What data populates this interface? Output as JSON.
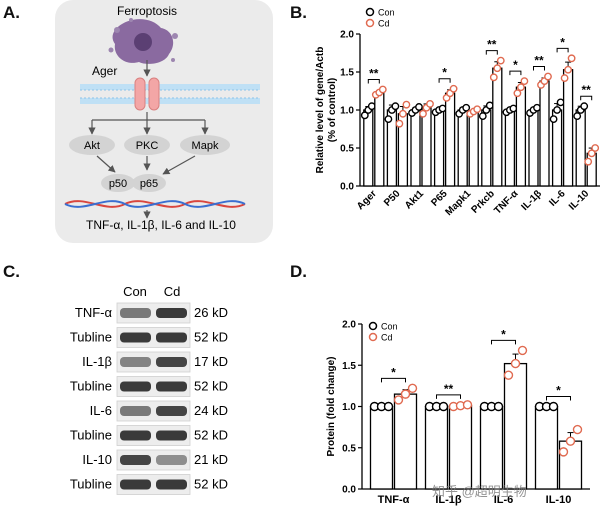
{
  "panels": {
    "A": {
      "label": "A.",
      "title": "Ferroptosis",
      "receptor": "Ager",
      "kinases": [
        "Akt",
        "PKC",
        "Mapk"
      ],
      "nfkb": [
        "p50",
        "p65"
      ],
      "outcome": "TNF-α, IL-1β, IL-6 and IL-10",
      "colors": {
        "bg": "#ebebeb",
        "cell": "#8a6aa0",
        "receptor": "#f3a6a6",
        "membrane": "#bfe0f5"
      }
    },
    "B": {
      "label": "B."
    },
    "C": {
      "label": "C.",
      "lanes": [
        "Con",
        "Cd"
      ],
      "rows": [
        {
          "name": "TNF-α",
          "kd": "26 kD"
        },
        {
          "name": "Tubline",
          "kd": "52 kD"
        },
        {
          "name": "IL-1β",
          "kd": "17 kD"
        },
        {
          "name": "Tubline",
          "kd": "52 kD"
        },
        {
          "name": "IL-6",
          "kd": "24 kD"
        },
        {
          "name": "Tubline",
          "kd": "52 kD"
        },
        {
          "name": "IL-10",
          "kd": "21 kD"
        },
        {
          "name": "Tubline",
          "kd": "52 kD"
        }
      ]
    },
    "D": {
      "label": "D."
    }
  },
  "watermark": "知乎 @超明生物",
  "chart_data": [
    {
      "id": "B",
      "type": "bar",
      "ylabel": "Relative level of gene/Actb\n(% of control)",
      "ylim": [
        0,
        2.0
      ],
      "yticks": [
        "0.0",
        "0.5",
        "1.0",
        "1.5",
        "2.0"
      ],
      "categories": [
        "Ager",
        "P50",
        "Akt1",
        "P65",
        "Mapk1",
        "Prkcb",
        "TNF-α",
        "IL-1β",
        "IL-6",
        "IL-10"
      ],
      "legend": [
        "Con",
        "Cd"
      ],
      "series": [
        {
          "name": "Con",
          "values": [
            1.0,
            1.0,
            1.0,
            1.0,
            1.0,
            1.0,
            1.0,
            1.0,
            1.0,
            1.0
          ],
          "color": "#000000"
        },
        {
          "name": "Cd",
          "values": [
            1.23,
            0.95,
            1.03,
            1.22,
            0.98,
            1.55,
            1.3,
            1.38,
            1.53,
            0.43
          ],
          "color": "#e06a50"
        }
      ],
      "points": {
        "Con": [
          [
            0.93,
            1.0,
            1.05
          ],
          [
            0.88,
            1.0,
            1.05
          ],
          [
            0.96,
            1.0,
            1.04
          ],
          [
            0.97,
            1.0,
            1.02
          ],
          [
            0.95,
            1.0,
            1.03
          ],
          [
            0.92,
            1.0,
            1.06
          ],
          [
            0.97,
            1.0,
            1.02
          ],
          [
            0.96,
            1.0,
            1.03
          ],
          [
            0.88,
            1.0,
            1.1
          ],
          [
            0.92,
            1.0,
            1.05
          ]
        ],
        "Cd": [
          [
            1.2,
            1.23,
            1.27
          ],
          [
            0.82,
            0.95,
            1.07
          ],
          [
            0.95,
            1.03,
            1.08
          ],
          [
            1.16,
            1.22,
            1.28
          ],
          [
            0.95,
            0.98,
            1.01
          ],
          [
            1.43,
            1.55,
            1.65
          ],
          [
            1.22,
            1.3,
            1.38
          ],
          [
            1.33,
            1.38,
            1.44
          ],
          [
            1.42,
            1.53,
            1.68
          ],
          [
            0.32,
            0.43,
            0.5
          ]
        ]
      },
      "significance": [
        "**",
        "",
        "",
        "*",
        "",
        "**",
        "*",
        "**",
        "*",
        "**"
      ]
    },
    {
      "id": "D",
      "type": "bar",
      "ylabel": "Protein (fold change)",
      "ylim": [
        0,
        2.0
      ],
      "yticks": [
        "0.0",
        "0.5",
        "1.0",
        "1.5",
        "2.0"
      ],
      "categories": [
        "TNF-α",
        "IL-1β",
        "IL-6",
        "IL-10"
      ],
      "legend": [
        "Con",
        "Cd"
      ],
      "series": [
        {
          "name": "Con",
          "values": [
            1.0,
            1.0,
            1.0,
            1.0
          ],
          "color": "#000000"
        },
        {
          "name": "Cd",
          "values": [
            1.15,
            1.01,
            1.52,
            0.58
          ],
          "color": "#e06a50"
        }
      ],
      "points": {
        "Con": [
          [
            1.0,
            1.0,
            1.0
          ],
          [
            1.0,
            1.0,
            1.0
          ],
          [
            1.0,
            1.0,
            1.0
          ],
          [
            1.0,
            1.0,
            1.0
          ]
        ],
        "Cd": [
          [
            1.08,
            1.15,
            1.22
          ],
          [
            1.0,
            1.01,
            1.02
          ],
          [
            1.38,
            1.52,
            1.68
          ],
          [
            0.45,
            0.58,
            0.72
          ]
        ]
      },
      "significance": [
        "*",
        "**",
        "*",
        "*"
      ]
    }
  ]
}
